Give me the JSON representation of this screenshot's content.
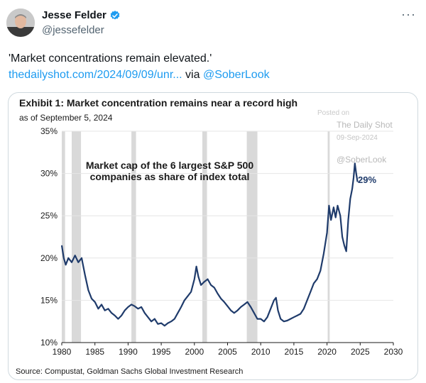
{
  "author": {
    "name": "Jesse Felder",
    "handle": "@jessefelder"
  },
  "more_label": "···",
  "tweet": {
    "text": "'Market concentrations remain elevated.'",
    "link_text": "thedailyshot.com/2024/09/09/unr...",
    "via_text": " via ",
    "mention": "@SoberLook"
  },
  "colors": {
    "accent": "#1d9bf0",
    "series": "#1f3b6b",
    "recession": "#d9d9d9"
  },
  "chart": {
    "title": "Exhibit 1: Market concentration remains near a record high",
    "subtitle": "as of September 5, 2024",
    "source": "Source: Compustat, Goldman Sachs Global Investment Research",
    "annotation_line1": "Market cap of the 6 largest S&P 500",
    "annotation_line2": "companies as share of index total",
    "end_label": "29%",
    "watermark": {
      "posted": "Posted on",
      "site": "The Daily Shot",
      "date": "09-Sep-2024",
      "handle": "@SoberLook"
    }
  },
  "chart_data": {
    "type": "line",
    "title": "Exhibit 1: Market concentration remains near a record high",
    "xlabel": "",
    "ylabel": "",
    "xlim": [
      1980,
      2030
    ],
    "ylim": [
      10,
      35
    ],
    "x_ticks": [
      1980,
      1985,
      1990,
      1995,
      2000,
      2005,
      2010,
      2015,
      2020,
      2025,
      2030
    ],
    "y_ticks": [
      10,
      15,
      20,
      25,
      30,
      35
    ],
    "y_tick_labels": [
      "10%",
      "15%",
      "20%",
      "25%",
      "30%",
      "35%"
    ],
    "grid": "horizontal",
    "recession_bands": [
      [
        1980.0,
        1980.5
      ],
      [
        1981.5,
        1982.9
      ],
      [
        1990.5,
        1991.2
      ],
      [
        2001.2,
        2001.9
      ],
      [
        2007.9,
        2009.5
      ],
      [
        2020.1,
        2020.4
      ]
    ],
    "series": [
      {
        "points": [
          [
            1980.0,
            21.5
          ],
          [
            1980.3,
            20.0
          ],
          [
            1980.6,
            19.2
          ],
          [
            1981.0,
            20.0
          ],
          [
            1981.5,
            19.5
          ],
          [
            1982.0,
            20.3
          ],
          [
            1982.5,
            19.5
          ],
          [
            1983.0,
            20.0
          ],
          [
            1983.5,
            18.0
          ],
          [
            1984.0,
            16.2
          ],
          [
            1984.5,
            15.2
          ],
          [
            1985.0,
            14.8
          ],
          [
            1985.5,
            14.0
          ],
          [
            1986.0,
            14.5
          ],
          [
            1986.5,
            13.8
          ],
          [
            1987.0,
            14.0
          ],
          [
            1987.5,
            13.5
          ],
          [
            1988.0,
            13.2
          ],
          [
            1988.5,
            12.8
          ],
          [
            1989.0,
            13.2
          ],
          [
            1989.5,
            13.8
          ],
          [
            1990.0,
            14.2
          ],
          [
            1990.5,
            14.5
          ],
          [
            1991.0,
            14.3
          ],
          [
            1991.5,
            14.0
          ],
          [
            1992.0,
            14.2
          ],
          [
            1992.5,
            13.5
          ],
          [
            1993.0,
            13.0
          ],
          [
            1993.5,
            12.5
          ],
          [
            1994.0,
            12.8
          ],
          [
            1994.5,
            12.2
          ],
          [
            1995.0,
            12.3
          ],
          [
            1995.5,
            12.0
          ],
          [
            1996.0,
            12.3
          ],
          [
            1996.5,
            12.5
          ],
          [
            1997.0,
            12.8
          ],
          [
            1997.5,
            13.5
          ],
          [
            1998.0,
            14.2
          ],
          [
            1998.5,
            15.0
          ],
          [
            1999.0,
            15.5
          ],
          [
            1999.5,
            16.0
          ],
          [
            2000.0,
            17.5
          ],
          [
            2000.3,
            19.0
          ],
          [
            2000.6,
            17.8
          ],
          [
            2001.0,
            16.8
          ],
          [
            2001.5,
            17.2
          ],
          [
            2002.0,
            17.5
          ],
          [
            2002.5,
            16.8
          ],
          [
            2003.0,
            16.5
          ],
          [
            2003.5,
            15.8
          ],
          [
            2004.0,
            15.2
          ],
          [
            2004.5,
            14.8
          ],
          [
            2005.0,
            14.3
          ],
          [
            2005.5,
            13.8
          ],
          [
            2006.0,
            13.5
          ],
          [
            2006.5,
            13.8
          ],
          [
            2007.0,
            14.2
          ],
          [
            2007.5,
            14.5
          ],
          [
            2008.0,
            14.8
          ],
          [
            2008.5,
            14.2
          ],
          [
            2009.0,
            13.5
          ],
          [
            2009.5,
            12.8
          ],
          [
            2010.0,
            12.8
          ],
          [
            2010.5,
            12.5
          ],
          [
            2011.0,
            13.0
          ],
          [
            2011.5,
            14.0
          ],
          [
            2012.0,
            15.0
          ],
          [
            2012.3,
            15.3
          ],
          [
            2012.6,
            13.8
          ],
          [
            2013.0,
            12.8
          ],
          [
            2013.5,
            12.5
          ],
          [
            2014.0,
            12.6
          ],
          [
            2014.5,
            12.8
          ],
          [
            2015.0,
            13.0
          ],
          [
            2015.5,
            13.2
          ],
          [
            2016.0,
            13.4
          ],
          [
            2016.5,
            14.0
          ],
          [
            2017.0,
            15.0
          ],
          [
            2017.5,
            16.0
          ],
          [
            2018.0,
            17.0
          ],
          [
            2018.5,
            17.5
          ],
          [
            2019.0,
            18.5
          ],
          [
            2019.5,
            20.5
          ],
          [
            2020.0,
            23.0
          ],
          [
            2020.3,
            26.2
          ],
          [
            2020.6,
            24.5
          ],
          [
            2021.0,
            26.0
          ],
          [
            2021.3,
            24.8
          ],
          [
            2021.6,
            26.2
          ],
          [
            2022.0,
            25.0
          ],
          [
            2022.3,
            22.5
          ],
          [
            2022.6,
            21.5
          ],
          [
            2022.9,
            20.8
          ],
          [
            2023.2,
            24.5
          ],
          [
            2023.5,
            27.0
          ],
          [
            2023.8,
            28.2
          ],
          [
            2024.0,
            29.5
          ],
          [
            2024.2,
            31.2
          ],
          [
            2024.4,
            30.0
          ],
          [
            2024.6,
            29.0
          ]
        ]
      }
    ]
  }
}
